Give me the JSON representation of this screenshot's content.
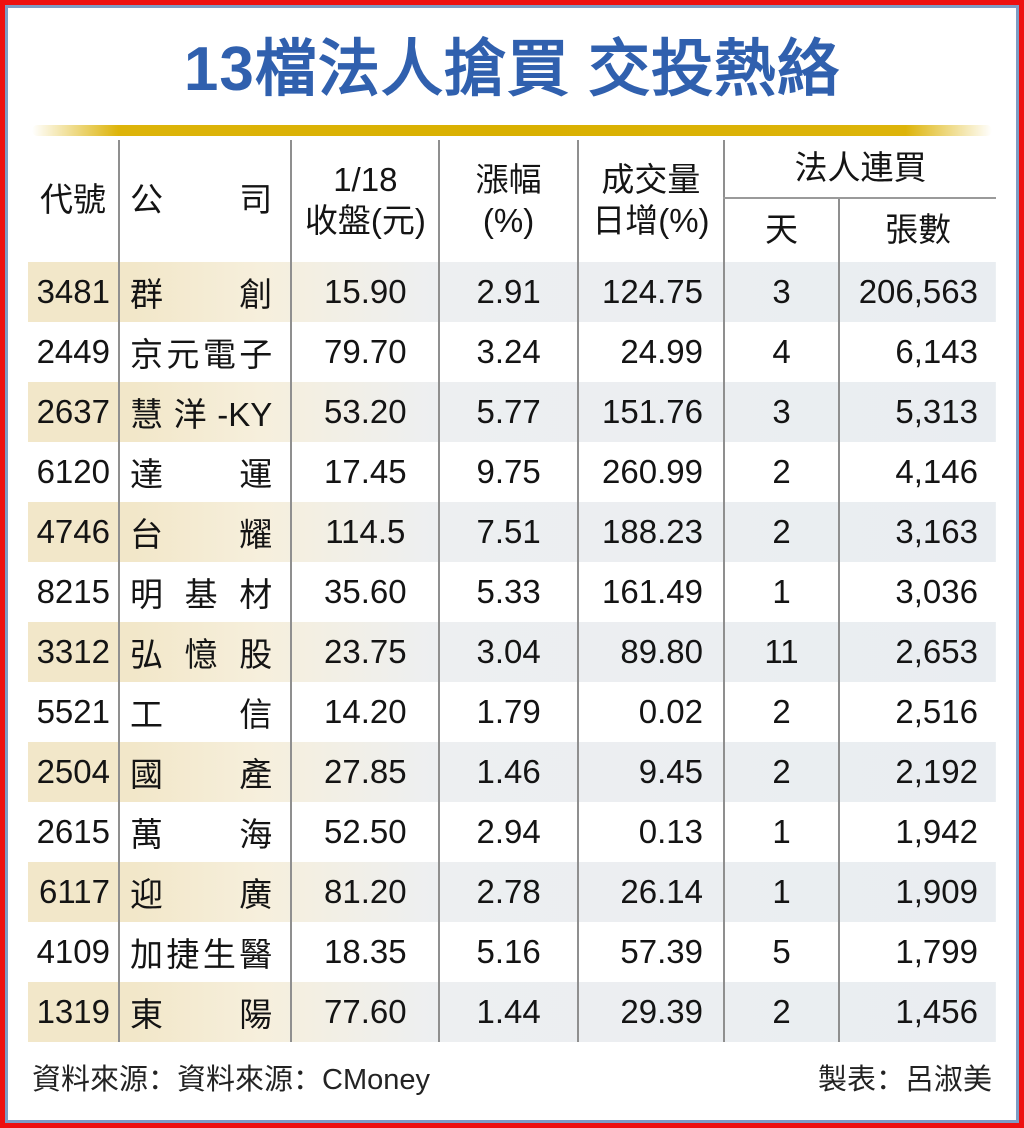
{
  "title": "13檔法人搶買 交投熱絡",
  "colors": {
    "title_blue": "#3060ae",
    "frame_outer_red": "#ee1010",
    "frame_inner_blue": "#7e9cc4",
    "gold_bar": "#d9b000",
    "stripe_cream": "#f2e7c9",
    "stripe_gray_blue": "#e9edf1",
    "divider_gray": "#8f8f8f"
  },
  "table": {
    "headers": {
      "code": "代號",
      "company": "公　司",
      "close_line1": "1/18",
      "close_line2": "收盤(元)",
      "change_line1": "漲幅",
      "change_line2": "(%)",
      "volume_line1": "成交量",
      "volume_line2": "日增(%)",
      "group": "法人連買",
      "days": "天",
      "lots": "張數"
    },
    "rows": [
      {
        "code": "3481",
        "company": "群創",
        "close": "15.90",
        "change": "2.91",
        "volume": "124.75",
        "days": "3",
        "lots": "206,563"
      },
      {
        "code": "2449",
        "company": "京元電子",
        "close": "79.70",
        "change": "3.24",
        "volume": "24.99",
        "days": "4",
        "lots": "6,143"
      },
      {
        "code": "2637",
        "company": "慧洋-KY",
        "close": "53.20",
        "change": "5.77",
        "volume": "151.76",
        "days": "3",
        "lots": "5,313"
      },
      {
        "code": "6120",
        "company": "達運",
        "close": "17.45",
        "change": "9.75",
        "volume": "260.99",
        "days": "2",
        "lots": "4,146"
      },
      {
        "code": "4746",
        "company": "台耀",
        "close": "114.5",
        "change": "7.51",
        "volume": "188.23",
        "days": "2",
        "lots": "3,163"
      },
      {
        "code": "8215",
        "company": "明基材",
        "close": "35.60",
        "change": "5.33",
        "volume": "161.49",
        "days": "1",
        "lots": "3,036"
      },
      {
        "code": "3312",
        "company": "弘憶股",
        "close": "23.75",
        "change": "3.04",
        "volume": "89.80",
        "days": "11",
        "lots": "2,653"
      },
      {
        "code": "5521",
        "company": "工信",
        "close": "14.20",
        "change": "1.79",
        "volume": "0.02",
        "days": "2",
        "lots": "2,516"
      },
      {
        "code": "2504",
        "company": "國產",
        "close": "27.85",
        "change": "1.46",
        "volume": "9.45",
        "days": "2",
        "lots": "2,192"
      },
      {
        "code": "2615",
        "company": "萬海",
        "close": "52.50",
        "change": "2.94",
        "volume": "0.13",
        "days": "1",
        "lots": "1,942"
      },
      {
        "code": "6117",
        "company": "迎廣",
        "close": "81.20",
        "change": "2.78",
        "volume": "26.14",
        "days": "1",
        "lots": "1,909"
      },
      {
        "code": "4109",
        "company": "加捷生醫",
        "close": "18.35",
        "change": "5.16",
        "volume": "57.39",
        "days": "5",
        "lots": "1,799"
      },
      {
        "code": "1319",
        "company": "東陽",
        "close": "77.60",
        "change": "1.44",
        "volume": "29.39",
        "days": "2",
        "lots": "1,456"
      }
    ]
  },
  "footer": {
    "source": "資料來源：資料來源：CMoney",
    "credit": "製表：呂淑美"
  },
  "chart_data": {
    "type": "table",
    "title": "13檔法人搶買 交投熱絡",
    "columns": [
      "代號",
      "公司",
      "1/18收盤(元)",
      "漲幅(%)",
      "成交量日增(%)",
      "法人連買天",
      "法人連買張數"
    ],
    "rows": [
      [
        "3481",
        "群創",
        15.9,
        2.91,
        124.75,
        3,
        206563
      ],
      [
        "2449",
        "京元電子",
        79.7,
        3.24,
        24.99,
        4,
        6143
      ],
      [
        "2637",
        "慧洋-KY",
        53.2,
        5.77,
        151.76,
        3,
        5313
      ],
      [
        "6120",
        "達運",
        17.45,
        9.75,
        260.99,
        2,
        4146
      ],
      [
        "4746",
        "台耀",
        114.5,
        7.51,
        188.23,
        2,
        3163
      ],
      [
        "8215",
        "明基材",
        35.6,
        5.33,
        161.49,
        1,
        3036
      ],
      [
        "3312",
        "弘憶股",
        23.75,
        3.04,
        89.8,
        11,
        2653
      ],
      [
        "5521",
        "工信",
        14.2,
        1.79,
        0.02,
        2,
        2516
      ],
      [
        "2504",
        "國產",
        27.85,
        1.46,
        9.45,
        2,
        2192
      ],
      [
        "2615",
        "萬海",
        52.5,
        2.94,
        0.13,
        1,
        1942
      ],
      [
        "6117",
        "迎廣",
        81.2,
        2.78,
        26.14,
        1,
        1909
      ],
      [
        "4109",
        "加捷生醫",
        18.35,
        5.16,
        57.39,
        5,
        1799
      ],
      [
        "1319",
        "東陽",
        77.6,
        1.44,
        29.39,
        2,
        1456
      ]
    ],
    "source": "CMoney",
    "credit": "呂淑美"
  }
}
